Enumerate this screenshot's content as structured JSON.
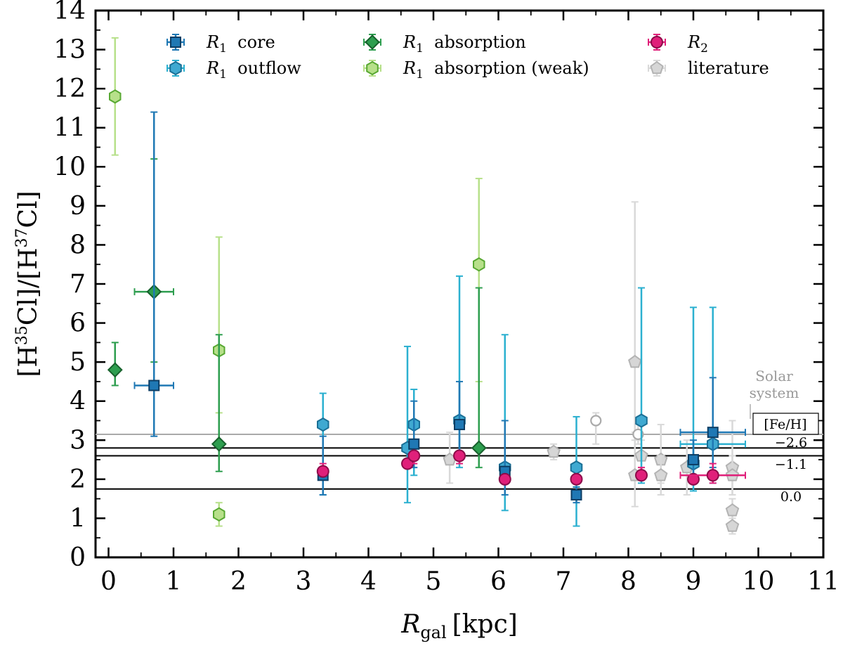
{
  "chart_data": {
    "type": "scatter",
    "xlabel_main": "R",
    "xlabel_sub": "gal",
    "xlabel_unit": "[kpc]",
    "ylabel_parts": [
      "[H",
      "35",
      "Cl]/[H",
      "37",
      "Cl]"
    ],
    "xlim": [
      -0.2,
      11
    ],
    "ylim": [
      0,
      14
    ],
    "xticks": [
      "0",
      "1",
      "2",
      "3",
      "4",
      "5",
      "6",
      "7",
      "8",
      "9",
      "10",
      "11"
    ],
    "yticks": [
      "0",
      "1",
      "2",
      "3",
      "4",
      "5",
      "6",
      "7",
      "8",
      "9",
      "10",
      "11",
      "12",
      "13",
      "14"
    ],
    "hlines": [
      {
        "name": "solar-system",
        "y": 3.15,
        "color": "#aaaaaa"
      },
      {
        "name": "fe-h-minus-2.6",
        "y": 2.8,
        "color": "#000000"
      },
      {
        "name": "fe-h-minus-1.1",
        "y": 2.6,
        "color": "#000000"
      },
      {
        "name": "fe-h-0.0",
        "y": 1.75,
        "color": "#000000"
      }
    ],
    "annotations": {
      "solar_line1": "Solar",
      "solar_line2": "system",
      "feh_box": "[Fe/H]",
      "feh_values": [
        "−2.6",
        "−1.1",
        "0.0"
      ]
    },
    "series": [
      {
        "name": "R1 core",
        "label_main": "R",
        "label_sub": "1",
        "label_rest": " core",
        "marker": "square",
        "face": "#1f78b4",
        "edge": "#0d3d63",
        "err": "#1f78b4",
        "points": [
          {
            "x": 0.7,
            "y": 4.4,
            "ylo": 3.1,
            "yhi": 11.4,
            "xerr": 0.3
          },
          {
            "x": 3.3,
            "y": 2.1,
            "ylo": 1.6,
            "yhi": 3.1
          },
          {
            "x": 4.7,
            "y": 2.9,
            "ylo": 2.3,
            "yhi": 4.0
          },
          {
            "x": 5.4,
            "y": 3.4,
            "ylo": 2.5,
            "yhi": 4.5
          },
          {
            "x": 6.1,
            "y": 2.2,
            "ylo": 1.6,
            "yhi": 3.5
          },
          {
            "x": 7.2,
            "y": 1.6,
            "ylo": 1.4,
            "yhi": 1.8
          },
          {
            "x": 9.0,
            "y": 2.5,
            "ylo": 1.9,
            "yhi": 3.0
          },
          {
            "x": 9.3,
            "y": 3.2,
            "ylo": 2.3,
            "yhi": 4.6,
            "xerr": 0.5
          }
        ]
      },
      {
        "name": "R1 outflow",
        "label_main": "R",
        "label_sub": "1",
        "label_rest": " outflow",
        "marker": "hexagon",
        "face": "#3fa9d1",
        "edge": "#1a6f95",
        "err": "#2bb0d0",
        "points": [
          {
            "x": 3.3,
            "y": 3.4,
            "ylo": 1.6,
            "yhi": 4.2
          },
          {
            "x": 4.6,
            "y": 2.8,
            "ylo": 1.4,
            "yhi": 5.4
          },
          {
            "x": 4.7,
            "y": 3.4,
            "ylo": 2.1,
            "yhi": 4.3
          },
          {
            "x": 5.4,
            "y": 3.5,
            "ylo": 2.3,
            "yhi": 7.2
          },
          {
            "x": 6.1,
            "y": 2.3,
            "ylo": 1.2,
            "yhi": 5.7
          },
          {
            "x": 7.2,
            "y": 2.3,
            "ylo": 0.8,
            "yhi": 3.6
          },
          {
            "x": 8.2,
            "y": 3.5,
            "ylo": 1.9,
            "yhi": 6.9
          },
          {
            "x": 9.0,
            "y": 2.4,
            "ylo": 1.7,
            "yhi": 6.4
          },
          {
            "x": 9.3,
            "y": 2.9,
            "ylo": 1.9,
            "yhi": 6.4,
            "xerr": 0.5
          }
        ]
      },
      {
        "name": "R1 absorption",
        "label_main": "R",
        "label_sub": "1",
        "label_rest": " absorption",
        "marker": "diamond",
        "face": "#2e9e4f",
        "edge": "#17602c",
        "err": "#2e9e4f",
        "points": [
          {
            "x": 0.1,
            "y": 4.8,
            "ylo": 4.4,
            "yhi": 5.5
          },
          {
            "x": 0.7,
            "y": 6.8,
            "ylo": 5.0,
            "yhi": 10.2,
            "xerr": 0.3
          },
          {
            "x": 1.7,
            "y": 2.9,
            "ylo": 2.2,
            "yhi": 5.7
          },
          {
            "x": 5.7,
            "y": 2.8,
            "ylo": 2.3,
            "yhi": 6.9
          }
        ]
      },
      {
        "name": "R1 absorption (weak)",
        "label_main": "R",
        "label_sub": "1",
        "label_rest": " absorption (weak)",
        "marker": "hexagon",
        "face": "#b7e08a",
        "edge": "#58a832",
        "err": "#b7e08a",
        "points": [
          {
            "x": 0.1,
            "y": 11.8,
            "ylo": 10.3,
            "yhi": 13.3
          },
          {
            "x": 1.7,
            "y": 5.3,
            "ylo": 3.7,
            "yhi": 8.2
          },
          {
            "x": 1.7,
            "y": 1.1,
            "ylo": 0.8,
            "yhi": 1.4
          },
          {
            "x": 5.7,
            "y": 7.5,
            "ylo": 4.5,
            "yhi": 9.7
          }
        ]
      },
      {
        "name": "R2",
        "label_main": "R",
        "label_sub": "2",
        "label_rest": "",
        "marker": "circle",
        "face": "#e0207a",
        "edge": "#8c0c49",
        "err": "#e0207a",
        "points": [
          {
            "x": 3.3,
            "y": 2.2,
            "ylo": 2.1,
            "yhi": 2.4
          },
          {
            "x": 4.6,
            "y": 2.4,
            "ylo": 2.3,
            "yhi": 2.5
          },
          {
            "x": 4.7,
            "y": 2.6,
            "ylo": 2.4,
            "yhi": 2.7
          },
          {
            "x": 5.4,
            "y": 2.6,
            "ylo": 2.4,
            "yhi": 2.7
          },
          {
            "x": 6.1,
            "y": 2.0,
            "ylo": 1.9,
            "yhi": 2.1
          },
          {
            "x": 7.2,
            "y": 2.0,
            "ylo": 1.9,
            "yhi": 2.1
          },
          {
            "x": 8.2,
            "y": 2.1,
            "ylo": 2.0,
            "yhi": 2.3
          },
          {
            "x": 9.0,
            "y": 2.0,
            "ylo": 1.9,
            "yhi": 2.1
          },
          {
            "x": 9.3,
            "y": 2.1,
            "ylo": 1.9,
            "yhi": 2.4,
            "xerr": 0.5
          }
        ]
      },
      {
        "name": "literature",
        "label_main": "literature",
        "label_sub": "",
        "label_rest": "",
        "marker": "pentagon",
        "face": "#d6d6d6",
        "edge": "#b3b3b3",
        "err": "#d9d9d9",
        "points": [
          {
            "x": 5.25,
            "y": 2.5,
            "ylo": 1.9,
            "yhi": 3.2
          },
          {
            "x": 6.85,
            "y": 2.7,
            "ylo": 2.5,
            "yhi": 2.9
          },
          {
            "x": 8.1,
            "y": 5.0,
            "ylo": 3.0,
            "yhi": 9.1
          },
          {
            "x": 8.1,
            "y": 2.1,
            "ylo": 1.3,
            "yhi": 3.2
          },
          {
            "x": 8.2,
            "y": 2.6,
            "ylo": 2.0,
            "yhi": 3.0
          },
          {
            "x": 8.5,
            "y": 2.5,
            "ylo": 1.9,
            "yhi": 3.4
          },
          {
            "x": 8.5,
            "y": 2.1,
            "ylo": 1.6,
            "yhi": 2.6
          },
          {
            "x": 8.9,
            "y": 2.3,
            "ylo": 1.6,
            "yhi": 3.0
          },
          {
            "x": 9.6,
            "y": 2.3,
            "ylo": 1.6,
            "yhi": 3.5
          },
          {
            "x": 9.6,
            "y": 2.1,
            "ylo": 1.6,
            "yhi": 2.6
          },
          {
            "x": 9.6,
            "y": 1.2,
            "ylo": 0.9,
            "yhi": 1.5
          },
          {
            "x": 9.6,
            "y": 0.8,
            "ylo": 0.6,
            "yhi": 1.0
          }
        ]
      },
      {
        "name": "literature (open)",
        "label_main": "",
        "label_sub": "",
        "label_rest": "",
        "marker": "open-circle",
        "face": "none",
        "edge": "#aaaaaa",
        "err": "#d9d9d9",
        "points": [
          {
            "x": 7.5,
            "y": 3.5,
            "ylo": 2.9,
            "yhi": 3.7
          },
          {
            "x": 8.15,
            "y": 3.15,
            "ylo": 2.9,
            "yhi": 3.4
          }
        ]
      }
    ],
    "legend_order": [
      0,
      2,
      4,
      1,
      3,
      5
    ]
  }
}
